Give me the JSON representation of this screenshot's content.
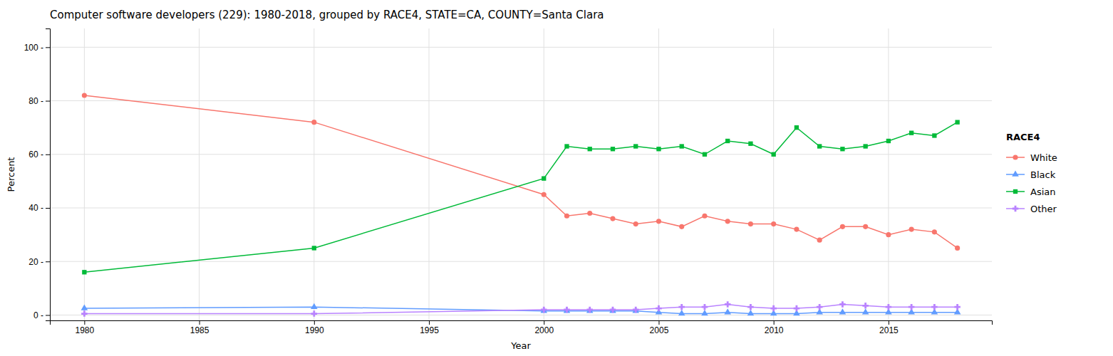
{
  "chart_data": {
    "type": "line",
    "title": "Computer software developers (229): 1980-2018, grouped by RACE4, STATE=CA, COUNTY=Santa Clara",
    "x_label": "Year",
    "y_label": "Percent",
    "legend_title": "RACE4",
    "legend": "right",
    "grid": true,
    "x": [
      1980,
      1990,
      2000,
      2001,
      2002,
      2003,
      2004,
      2005,
      2006,
      2007,
      2008,
      2009,
      2010,
      2011,
      2012,
      2013,
      2014,
      2015,
      2016,
      2017,
      2018
    ],
    "series": [
      {
        "name": "White",
        "color": "#f8766d",
        "marker": "circle",
        "values": [
          82,
          72,
          45,
          37,
          38,
          36,
          34,
          35,
          33,
          37,
          35,
          34,
          34,
          32,
          28,
          33,
          33,
          30,
          32,
          31,
          25
        ]
      },
      {
        "name": "Black",
        "color": "#619cff",
        "marker": "triangle",
        "values": [
          2.5,
          3.0,
          1.5,
          1.5,
          1.5,
          1.5,
          1.5,
          1.0,
          0.5,
          0.5,
          1.0,
          0.5,
          0.5,
          0.5,
          1.0,
          1.0,
          1.0,
          1.0,
          1.0,
          1.0,
          1.0
        ]
      },
      {
        "name": "Asian",
        "color": "#00ba38",
        "marker": "square",
        "values": [
          16,
          25,
          51,
          63,
          62,
          62,
          63,
          62,
          63,
          60,
          65,
          64,
          60,
          70,
          63,
          62,
          63,
          65,
          68,
          67,
          72
        ]
      },
      {
        "name": "Other",
        "color": "#b983ff",
        "marker": "plus",
        "values": [
          0.5,
          0.5,
          2.0,
          2.0,
          2.0,
          2.0,
          2.0,
          2.5,
          3.0,
          3.0,
          4.0,
          3.0,
          2.5,
          2.5,
          3.0,
          4.0,
          3.5,
          3.0,
          3.0,
          3.0,
          3.0
        ]
      }
    ],
    "xlim": [
      1978.5,
      2019.5
    ],
    "xticks": [
      1980,
      1985,
      1990,
      1995,
      2000,
      2005,
      2010,
      2015
    ],
    "ylim": [
      -2,
      107
    ],
    "yticks": [
      {
        "value": 0,
        "label": "0 -"
      },
      {
        "value": 20,
        "label": "20 -"
      },
      {
        "value": 40,
        "label": "40 -"
      },
      {
        "value": 60,
        "label": "60 -"
      },
      {
        "value": 80,
        "label": "80 -"
      },
      {
        "value": 100,
        "label": "100 -"
      }
    ]
  }
}
